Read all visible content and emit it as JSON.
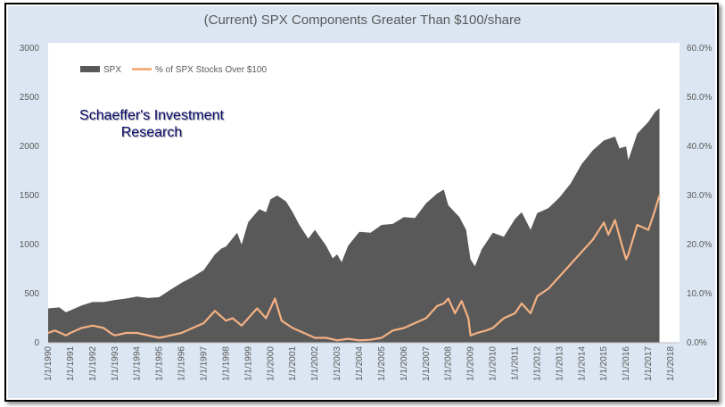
{
  "chart_data": {
    "type": "area",
    "title": "(Current) SPX Components Greater Than $100/share",
    "watermark": [
      "Schaeffer's Investment",
      "Research"
    ],
    "legend_position": "top-left",
    "grid": false,
    "x_labels": [
      "1/1/1990",
      "1/1/1991",
      "1/1/1992",
      "1/1/1993",
      "1/1/1994",
      "1/1/1995",
      "1/1/1996",
      "1/1/1997",
      "1/1/1998",
      "1/1/1999",
      "1/1/2000",
      "1/1/2001",
      "1/1/2002",
      "1/1/2003",
      "1/1/2004",
      "1/1/2005",
      "1/1/2006",
      "1/1/2007",
      "1/1/2008",
      "1/1/2009",
      "1/1/2010",
      "1/1/2011",
      "1/1/2012",
      "1/1/2013",
      "1/1/2014",
      "1/1/2015",
      "1/1/2016",
      "1/1/2017",
      "1/1/2018"
    ],
    "xlim": [
      1990,
      2018
    ],
    "y_left": {
      "ylim": [
        0,
        3000
      ],
      "ticks": [
        "0",
        "500",
        "1000",
        "1500",
        "2000",
        "2500",
        "3000"
      ]
    },
    "y_right": {
      "ylim": [
        0,
        60
      ],
      "ticks": [
        "0.0%",
        "10.0%",
        "20.0%",
        "30.0%",
        "40.0%",
        "50.0%",
        "60.0%"
      ]
    },
    "series": [
      {
        "name": "SPX",
        "axis": "left",
        "color": "#595959",
        "style": "area",
        "x": [
          1990.0,
          1990.5,
          1990.8,
          1991.0,
          1991.5,
          1992.0,
          1992.5,
          1993.0,
          1993.5,
          1994.0,
          1994.5,
          1995.0,
          1995.5,
          1996.0,
          1996.5,
          1997.0,
          1997.5,
          1997.8,
          1998.0,
          1998.5,
          1998.7,
          1999.0,
          1999.5,
          1999.8,
          2000.0,
          2000.3,
          2000.7,
          2001.0,
          2001.3,
          2001.7,
          2002.0,
          2002.5,
          2002.8,
          2003.0,
          2003.2,
          2003.5,
          2004.0,
          2004.5,
          2005.0,
          2005.5,
          2006.0,
          2006.5,
          2007.0,
          2007.5,
          2007.8,
          2008.0,
          2008.5,
          2008.8,
          2009.0,
          2009.2,
          2009.5,
          2010.0,
          2010.5,
          2011.0,
          2011.3,
          2011.7,
          2012.0,
          2012.5,
          2013.0,
          2013.5,
          2014.0,
          2014.5,
          2015.0,
          2015.5,
          2015.7,
          2016.0,
          2016.1,
          2016.5,
          2017.0,
          2017.3,
          2017.5
        ],
        "values": [
          350,
          360,
          310,
          330,
          380,
          415,
          415,
          435,
          450,
          470,
          455,
          465,
          540,
          610,
          670,
          740,
          900,
          960,
          980,
          1120,
          1000,
          1230,
          1360,
          1330,
          1460,
          1500,
          1440,
          1330,
          1200,
          1060,
          1150,
          990,
          860,
          900,
          820,
          990,
          1130,
          1120,
          1200,
          1210,
          1280,
          1270,
          1420,
          1520,
          1560,
          1400,
          1280,
          1150,
          850,
          780,
          950,
          1120,
          1080,
          1260,
          1330,
          1150,
          1320,
          1370,
          1480,
          1620,
          1820,
          1960,
          2060,
          2100,
          1980,
          2000,
          1860,
          2130,
          2250,
          2350,
          2390
        ]
      },
      {
        "name": "% of SPX Stocks Over $100",
        "axis": "right",
        "color": "#f4b183",
        "style": "line",
        "x": [
          1990.0,
          1990.3,
          1990.8,
          1991.0,
          1991.5,
          1992.0,
          1992.5,
          1992.8,
          1993.0,
          1993.5,
          1994.0,
          1994.5,
          1995.0,
          1995.5,
          1996.0,
          1996.5,
          1997.0,
          1997.5,
          1998.0,
          1998.3,
          1998.7,
          1999.0,
          1999.4,
          1999.8,
          2000.2,
          2000.5,
          2001.0,
          2001.5,
          2002.0,
          2002.5,
          2003.0,
          2003.5,
          2004.0,
          2004.5,
          2005.0,
          2005.5,
          2006.0,
          2006.5,
          2007.0,
          2007.5,
          2007.8,
          2008.0,
          2008.3,
          2008.6,
          2008.9,
          2009.0,
          2009.3,
          2009.7,
          2010.0,
          2010.5,
          2011.0,
          2011.3,
          2011.7,
          2012.0,
          2012.5,
          2013.0,
          2013.5,
          2014.0,
          2014.5,
          2015.0,
          2015.2,
          2015.5,
          2015.8,
          2016.0,
          2016.1,
          2016.5,
          2017.0,
          2017.3,
          2017.5
        ],
        "values": [
          2,
          2.5,
          1.5,
          2,
          3,
          3.5,
          3,
          2,
          1.5,
          2,
          2,
          1.5,
          1,
          1.5,
          2,
          3,
          4,
          6.5,
          4.5,
          5,
          3.5,
          5,
          7,
          5,
          9,
          4.5,
          3,
          2,
          1,
          1,
          0.5,
          0.8,
          0.5,
          0.6,
          1,
          2.5,
          3,
          4,
          5,
          7.5,
          8,
          9,
          6,
          8.5,
          5,
          1.5,
          2,
          2.5,
          3,
          5,
          6,
          8,
          6,
          9.5,
          11,
          13.5,
          16,
          18.5,
          21,
          24.5,
          22,
          25,
          20,
          17,
          18,
          24,
          23,
          27,
          30
        ]
      }
    ]
  }
}
